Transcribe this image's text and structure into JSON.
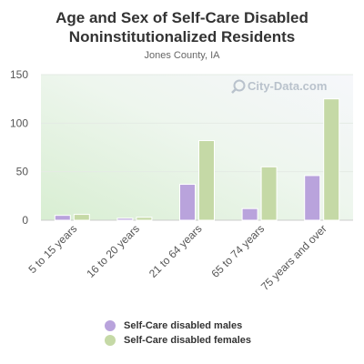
{
  "chart_data": {
    "type": "bar",
    "title": "Age and Sex of Self-Care Disabled Noninstitutionalized Residents",
    "subtitle": "Jones County, IA",
    "categories": [
      "5 to 15 years",
      "16 to 20 years",
      "21 to 64 years",
      "65 to 74 years",
      "75 years and over"
    ],
    "series": [
      {
        "name": "Self-Care disabled males",
        "values": [
          5,
          2,
          37,
          12,
          46
        ],
        "color": "#b9a3dc"
      },
      {
        "name": "Self-Care disabled females",
        "values": [
          6,
          3,
          82,
          55,
          125
        ],
        "color": "#c5d9a6"
      }
    ],
    "yticks": [
      0,
      50,
      100,
      150
    ],
    "ylim": [
      0,
      150
    ],
    "grid": true,
    "legend_position": "bottom"
  },
  "watermark": "City-Data.com"
}
